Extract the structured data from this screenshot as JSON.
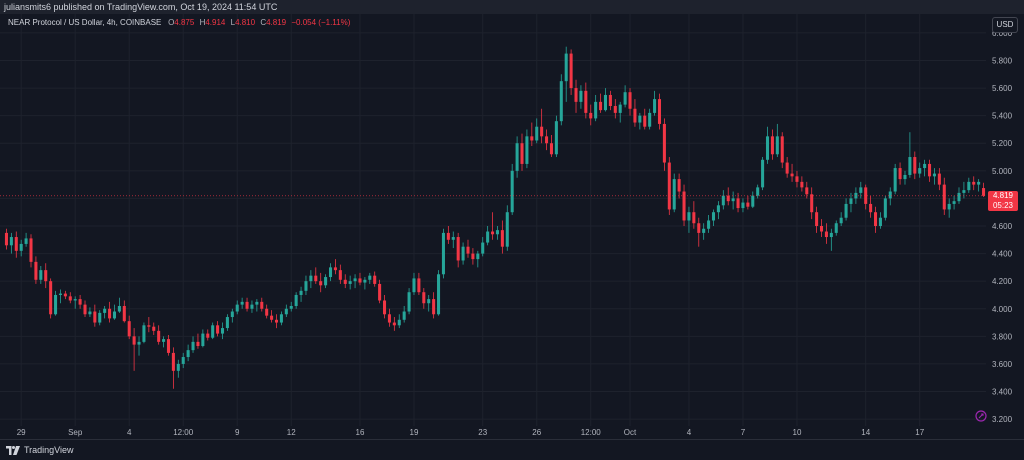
{
  "header": {
    "publisher_text": "juliansmits6 published on TradingView.com, Oct 19, 2024 11:54 UTC"
  },
  "legend": {
    "symbol": "NEAR Protocol / US Dollar, 4h, COINBASE",
    "open_key": "O",
    "open": "4.875",
    "high_key": "H",
    "high": "4.914",
    "low_key": "L",
    "low": "4.810",
    "close_key": "C",
    "close": "4.819",
    "change": "−0.054 (−1.11%)"
  },
  "toolbar": {
    "currency_label": "USD"
  },
  "price_tag": {
    "price": "4.819",
    "countdown": "05:23"
  },
  "footer": {
    "brand": "TradingView"
  },
  "colors": {
    "up": "#26a69a",
    "down": "#f23645",
    "background": "#131722",
    "grid": "#1e222d"
  },
  "chart_data": {
    "type": "candlestick",
    "title": "NEAR Protocol / US Dollar, 4h, COINBASE",
    "ylim": [
      3.15,
      6.05
    ],
    "y_ticks": [
      "6.000",
      "5.800",
      "5.600",
      "5.400",
      "5.200",
      "5.000",
      "4.800",
      "4.600",
      "4.400",
      "4.200",
      "4.000",
      "3.800",
      "3.600",
      "3.400",
      "3.200"
    ],
    "x_ticks": [
      "29",
      "Sep",
      "4",
      "12:00",
      "9",
      "12",
      "16",
      "19",
      "23",
      "26",
      "12:00",
      "Oct",
      "4",
      "7",
      "10",
      "14",
      "17"
    ],
    "x_tick_bars": [
      3,
      14,
      25,
      36,
      47,
      58,
      72,
      83,
      97,
      108,
      119,
      127,
      139,
      150,
      161,
      175,
      186
    ],
    "last_price": 4.819,
    "candles": [
      {
        "o": 4.55,
        "h": 4.58,
        "l": 4.43,
        "c": 4.46
      },
      {
        "o": 4.46,
        "h": 4.55,
        "l": 4.4,
        "c": 4.52
      },
      {
        "o": 4.52,
        "h": 4.56,
        "l": 4.37,
        "c": 4.42
      },
      {
        "o": 4.42,
        "h": 4.5,
        "l": 4.38,
        "c": 4.47
      },
      {
        "o": 4.47,
        "h": 4.55,
        "l": 4.45,
        "c": 4.51
      },
      {
        "o": 4.51,
        "h": 4.54,
        "l": 4.3,
        "c": 4.34
      },
      {
        "o": 4.34,
        "h": 4.38,
        "l": 4.18,
        "c": 4.21
      },
      {
        "o": 4.21,
        "h": 4.31,
        "l": 4.18,
        "c": 4.28
      },
      {
        "o": 4.28,
        "h": 4.33,
        "l": 4.15,
        "c": 4.2
      },
      {
        "o": 4.2,
        "h": 4.22,
        "l": 3.93,
        "c": 3.96
      },
      {
        "o": 3.96,
        "h": 4.13,
        "l": 3.95,
        "c": 4.1
      },
      {
        "o": 4.1,
        "h": 4.14,
        "l": 4.04,
        "c": 4.11
      },
      {
        "o": 4.11,
        "h": 4.13,
        "l": 4.07,
        "c": 4.09
      },
      {
        "o": 4.09,
        "h": 4.12,
        "l": 4.04,
        "c": 4.06
      },
      {
        "o": 4.06,
        "h": 4.09,
        "l": 4.0,
        "c": 4.07
      },
      {
        "o": 4.07,
        "h": 4.1,
        "l": 4.0,
        "c": 4.03
      },
      {
        "o": 4.03,
        "h": 4.06,
        "l": 3.94,
        "c": 3.96
      },
      {
        "o": 3.96,
        "h": 4.01,
        "l": 3.94,
        "c": 3.98
      },
      {
        "o": 3.98,
        "h": 4.03,
        "l": 3.87,
        "c": 3.9
      },
      {
        "o": 3.9,
        "h": 3.99,
        "l": 3.88,
        "c": 3.97
      },
      {
        "o": 3.97,
        "h": 4.02,
        "l": 3.93,
        "c": 4.0
      },
      {
        "o": 4.0,
        "h": 4.05,
        "l": 3.9,
        "c": 3.93
      },
      {
        "o": 3.93,
        "h": 4.03,
        "l": 3.92,
        "c": 3.98
      },
      {
        "o": 3.98,
        "h": 4.08,
        "l": 3.97,
        "c": 4.02
      },
      {
        "o": 4.02,
        "h": 4.06,
        "l": 3.9,
        "c": 3.91
      },
      {
        "o": 3.91,
        "h": 3.95,
        "l": 3.78,
        "c": 3.8
      },
      {
        "o": 3.8,
        "h": 3.86,
        "l": 3.55,
        "c": 3.74
      },
      {
        "o": 3.74,
        "h": 3.8,
        "l": 3.66,
        "c": 3.76
      },
      {
        "o": 3.76,
        "h": 3.9,
        "l": 3.75,
        "c": 3.88
      },
      {
        "o": 3.88,
        "h": 3.94,
        "l": 3.83,
        "c": 3.87
      },
      {
        "o": 3.87,
        "h": 3.9,
        "l": 3.81,
        "c": 3.84
      },
      {
        "o": 3.84,
        "h": 3.88,
        "l": 3.74,
        "c": 3.76
      },
      {
        "o": 3.76,
        "h": 3.8,
        "l": 3.72,
        "c": 3.78
      },
      {
        "o": 3.78,
        "h": 3.81,
        "l": 3.66,
        "c": 3.68
      },
      {
        "o": 3.68,
        "h": 3.72,
        "l": 3.42,
        "c": 3.55
      },
      {
        "o": 3.55,
        "h": 3.63,
        "l": 3.5,
        "c": 3.6
      },
      {
        "o": 3.6,
        "h": 3.68,
        "l": 3.57,
        "c": 3.65
      },
      {
        "o": 3.65,
        "h": 3.74,
        "l": 3.62,
        "c": 3.7
      },
      {
        "o": 3.7,
        "h": 3.8,
        "l": 3.68,
        "c": 3.76
      },
      {
        "o": 3.76,
        "h": 3.82,
        "l": 3.71,
        "c": 3.73
      },
      {
        "o": 3.73,
        "h": 3.85,
        "l": 3.72,
        "c": 3.82
      },
      {
        "o": 3.82,
        "h": 3.85,
        "l": 3.77,
        "c": 3.79
      },
      {
        "o": 3.79,
        "h": 3.9,
        "l": 3.78,
        "c": 3.88
      },
      {
        "o": 3.88,
        "h": 3.91,
        "l": 3.8,
        "c": 3.82
      },
      {
        "o": 3.82,
        "h": 3.9,
        "l": 3.78,
        "c": 3.86
      },
      {
        "o": 3.86,
        "h": 3.96,
        "l": 3.84,
        "c": 3.94
      },
      {
        "o": 3.94,
        "h": 4.0,
        "l": 3.9,
        "c": 3.98
      },
      {
        "o": 3.98,
        "h": 4.06,
        "l": 3.96,
        "c": 4.03
      },
      {
        "o": 4.03,
        "h": 4.08,
        "l": 4.0,
        "c": 4.05
      },
      {
        "o": 4.05,
        "h": 4.08,
        "l": 3.98,
        "c": 4.0
      },
      {
        "o": 4.0,
        "h": 4.06,
        "l": 3.97,
        "c": 4.03
      },
      {
        "o": 4.03,
        "h": 4.07,
        "l": 3.98,
        "c": 4.05
      },
      {
        "o": 4.05,
        "h": 4.08,
        "l": 3.98,
        "c": 4.0
      },
      {
        "o": 4.0,
        "h": 4.03,
        "l": 3.93,
        "c": 3.95
      },
      {
        "o": 3.95,
        "h": 3.99,
        "l": 3.9,
        "c": 3.92
      },
      {
        "o": 3.92,
        "h": 3.96,
        "l": 3.86,
        "c": 3.9
      },
      {
        "o": 3.9,
        "h": 3.98,
        "l": 3.88,
        "c": 3.96
      },
      {
        "o": 3.96,
        "h": 4.03,
        "l": 3.94,
        "c": 4.0
      },
      {
        "o": 4.0,
        "h": 4.05,
        "l": 3.98,
        "c": 4.02
      },
      {
        "o": 4.02,
        "h": 4.12,
        "l": 4.0,
        "c": 4.1
      },
      {
        "o": 4.1,
        "h": 4.16,
        "l": 4.05,
        "c": 4.13
      },
      {
        "o": 4.13,
        "h": 4.24,
        "l": 4.1,
        "c": 4.2
      },
      {
        "o": 4.2,
        "h": 4.28,
        "l": 4.15,
        "c": 4.24
      },
      {
        "o": 4.24,
        "h": 4.3,
        "l": 4.18,
        "c": 4.2
      },
      {
        "o": 4.2,
        "h": 4.26,
        "l": 4.12,
        "c": 4.17
      },
      {
        "o": 4.17,
        "h": 4.25,
        "l": 4.15,
        "c": 4.23
      },
      {
        "o": 4.23,
        "h": 4.33,
        "l": 4.2,
        "c": 4.3
      },
      {
        "o": 4.3,
        "h": 4.36,
        "l": 4.25,
        "c": 4.28
      },
      {
        "o": 4.28,
        "h": 4.32,
        "l": 4.18,
        "c": 4.21
      },
      {
        "o": 4.21,
        "h": 4.25,
        "l": 4.15,
        "c": 4.18
      },
      {
        "o": 4.18,
        "h": 4.24,
        "l": 4.14,
        "c": 4.2
      },
      {
        "o": 4.2,
        "h": 4.25,
        "l": 4.15,
        "c": 4.22
      },
      {
        "o": 4.22,
        "h": 4.26,
        "l": 4.17,
        "c": 4.19
      },
      {
        "o": 4.19,
        "h": 4.23,
        "l": 4.14,
        "c": 4.21
      },
      {
        "o": 4.21,
        "h": 4.26,
        "l": 4.18,
        "c": 4.24
      },
      {
        "o": 4.24,
        "h": 4.27,
        "l": 4.16,
        "c": 4.18
      },
      {
        "o": 4.18,
        "h": 4.21,
        "l": 4.04,
        "c": 4.06
      },
      {
        "o": 4.06,
        "h": 4.1,
        "l": 3.93,
        "c": 3.96
      },
      {
        "o": 3.96,
        "h": 4.0,
        "l": 3.87,
        "c": 3.9
      },
      {
        "o": 3.9,
        "h": 3.94,
        "l": 3.84,
        "c": 3.88
      },
      {
        "o": 3.88,
        "h": 3.96,
        "l": 3.86,
        "c": 3.92
      },
      {
        "o": 3.92,
        "h": 4.02,
        "l": 3.9,
        "c": 3.98
      },
      {
        "o": 3.98,
        "h": 4.15,
        "l": 3.96,
        "c": 4.12
      },
      {
        "o": 4.12,
        "h": 4.26,
        "l": 4.1,
        "c": 4.22
      },
      {
        "o": 4.22,
        "h": 4.26,
        "l": 4.1,
        "c": 4.12
      },
      {
        "o": 4.12,
        "h": 4.15,
        "l": 4.0,
        "c": 4.04
      },
      {
        "o": 4.04,
        "h": 4.1,
        "l": 3.98,
        "c": 4.07
      },
      {
        "o": 4.07,
        "h": 4.12,
        "l": 3.93,
        "c": 3.96
      },
      {
        "o": 3.96,
        "h": 4.28,
        "l": 3.95,
        "c": 4.25
      },
      {
        "o": 4.25,
        "h": 4.58,
        "l": 4.22,
        "c": 4.55
      },
      {
        "o": 4.55,
        "h": 4.6,
        "l": 4.47,
        "c": 4.5
      },
      {
        "o": 4.5,
        "h": 4.56,
        "l": 4.44,
        "c": 4.52
      },
      {
        "o": 4.52,
        "h": 4.55,
        "l": 4.3,
        "c": 4.35
      },
      {
        "o": 4.35,
        "h": 4.48,
        "l": 4.32,
        "c": 4.45
      },
      {
        "o": 4.45,
        "h": 4.5,
        "l": 4.37,
        "c": 4.4
      },
      {
        "o": 4.4,
        "h": 4.44,
        "l": 4.32,
        "c": 4.36
      },
      {
        "o": 4.36,
        "h": 4.42,
        "l": 4.3,
        "c": 4.4
      },
      {
        "o": 4.4,
        "h": 4.52,
        "l": 4.38,
        "c": 4.48
      },
      {
        "o": 4.48,
        "h": 4.6,
        "l": 4.46,
        "c": 4.56
      },
      {
        "o": 4.56,
        "h": 4.7,
        "l": 4.5,
        "c": 4.54
      },
      {
        "o": 4.54,
        "h": 4.6,
        "l": 4.5,
        "c": 4.57
      },
      {
        "o": 4.57,
        "h": 4.64,
        "l": 4.4,
        "c": 4.45
      },
      {
        "o": 4.45,
        "h": 4.75,
        "l": 4.42,
        "c": 4.7
      },
      {
        "o": 4.7,
        "h": 5.05,
        "l": 4.68,
        "c": 5.0
      },
      {
        "o": 5.0,
        "h": 5.25,
        "l": 4.95,
        "c": 5.2
      },
      {
        "o": 5.2,
        "h": 5.27,
        "l": 5.0,
        "c": 5.05
      },
      {
        "o": 5.05,
        "h": 5.3,
        "l": 5.02,
        "c": 5.25
      },
      {
        "o": 5.25,
        "h": 5.35,
        "l": 5.18,
        "c": 5.22
      },
      {
        "o": 5.22,
        "h": 5.38,
        "l": 5.2,
        "c": 5.32
      },
      {
        "o": 5.32,
        "h": 5.45,
        "l": 5.2,
        "c": 5.25
      },
      {
        "o": 5.25,
        "h": 5.3,
        "l": 5.15,
        "c": 5.2
      },
      {
        "o": 5.2,
        "h": 5.26,
        "l": 5.1,
        "c": 5.12
      },
      {
        "o": 5.12,
        "h": 5.4,
        "l": 5.1,
        "c": 5.36
      },
      {
        "o": 5.36,
        "h": 5.7,
        "l": 5.33,
        "c": 5.65
      },
      {
        "o": 5.65,
        "h": 5.9,
        "l": 5.5,
        "c": 5.85
      },
      {
        "o": 5.85,
        "h": 5.88,
        "l": 5.55,
        "c": 5.6
      },
      {
        "o": 5.6,
        "h": 5.66,
        "l": 5.42,
        "c": 5.5
      },
      {
        "o": 5.5,
        "h": 5.62,
        "l": 5.45,
        "c": 5.58
      },
      {
        "o": 5.58,
        "h": 5.64,
        "l": 5.38,
        "c": 5.42
      },
      {
        "o": 5.42,
        "h": 5.48,
        "l": 5.33,
        "c": 5.38
      },
      {
        "o": 5.38,
        "h": 5.55,
        "l": 5.36,
        "c": 5.5
      },
      {
        "o": 5.5,
        "h": 5.56,
        "l": 5.42,
        "c": 5.44
      },
      {
        "o": 5.44,
        "h": 5.6,
        "l": 5.43,
        "c": 5.55
      },
      {
        "o": 5.55,
        "h": 5.58,
        "l": 5.44,
        "c": 5.47
      },
      {
        "o": 5.47,
        "h": 5.52,
        "l": 5.38,
        "c": 5.42
      },
      {
        "o": 5.42,
        "h": 5.5,
        "l": 5.35,
        "c": 5.48
      },
      {
        "o": 5.48,
        "h": 5.62,
        "l": 5.46,
        "c": 5.57
      },
      {
        "o": 5.57,
        "h": 5.6,
        "l": 5.4,
        "c": 5.45
      },
      {
        "o": 5.45,
        "h": 5.52,
        "l": 5.32,
        "c": 5.35
      },
      {
        "o": 5.35,
        "h": 5.42,
        "l": 5.3,
        "c": 5.4
      },
      {
        "o": 5.4,
        "h": 5.45,
        "l": 5.3,
        "c": 5.32
      },
      {
        "o": 5.32,
        "h": 5.45,
        "l": 5.3,
        "c": 5.42
      },
      {
        "o": 5.42,
        "h": 5.58,
        "l": 5.4,
        "c": 5.52
      },
      {
        "o": 5.52,
        "h": 5.56,
        "l": 5.3,
        "c": 5.34
      },
      {
        "o": 5.34,
        "h": 5.38,
        "l": 5.0,
        "c": 5.06
      },
      {
        "o": 5.06,
        "h": 5.1,
        "l": 4.68,
        "c": 4.72
      },
      {
        "o": 4.72,
        "h": 4.98,
        "l": 4.7,
        "c": 4.94
      },
      {
        "o": 4.94,
        "h": 4.98,
        "l": 4.8,
        "c": 4.85
      },
      {
        "o": 4.85,
        "h": 4.9,
        "l": 4.6,
        "c": 4.64
      },
      {
        "o": 4.64,
        "h": 4.74,
        "l": 4.55,
        "c": 4.7
      },
      {
        "o": 4.7,
        "h": 4.78,
        "l": 4.58,
        "c": 4.62
      },
      {
        "o": 4.62,
        "h": 4.66,
        "l": 4.45,
        "c": 4.55
      },
      {
        "o": 4.55,
        "h": 4.62,
        "l": 4.5,
        "c": 4.58
      },
      {
        "o": 4.58,
        "h": 4.68,
        "l": 4.55,
        "c": 4.64
      },
      {
        "o": 4.64,
        "h": 4.72,
        "l": 4.6,
        "c": 4.7
      },
      {
        "o": 4.7,
        "h": 4.78,
        "l": 4.65,
        "c": 4.75
      },
      {
        "o": 4.75,
        "h": 4.86,
        "l": 4.72,
        "c": 4.82
      },
      {
        "o": 4.82,
        "h": 4.88,
        "l": 4.75,
        "c": 4.78
      },
      {
        "o": 4.78,
        "h": 4.85,
        "l": 4.72,
        "c": 4.8
      },
      {
        "o": 4.8,
        "h": 4.84,
        "l": 4.7,
        "c": 4.73
      },
      {
        "o": 4.73,
        "h": 4.8,
        "l": 4.7,
        "c": 4.77
      },
      {
        "o": 4.77,
        "h": 4.82,
        "l": 4.72,
        "c": 4.74
      },
      {
        "o": 4.74,
        "h": 4.85,
        "l": 4.73,
        "c": 4.82
      },
      {
        "o": 4.82,
        "h": 4.9,
        "l": 4.8,
        "c": 4.88
      },
      {
        "o": 4.88,
        "h": 5.1,
        "l": 4.86,
        "c": 5.08
      },
      {
        "o": 5.08,
        "h": 5.32,
        "l": 5.05,
        "c": 5.25
      },
      {
        "o": 5.25,
        "h": 5.3,
        "l": 5.08,
        "c": 5.12
      },
      {
        "o": 5.12,
        "h": 5.34,
        "l": 5.1,
        "c": 5.25
      },
      {
        "o": 5.25,
        "h": 5.28,
        "l": 5.02,
        "c": 5.06
      },
      {
        "o": 5.06,
        "h": 5.1,
        "l": 4.95,
        "c": 4.98
      },
      {
        "o": 4.98,
        "h": 5.05,
        "l": 4.92,
        "c": 4.96
      },
      {
        "o": 4.96,
        "h": 5.0,
        "l": 4.88,
        "c": 4.92
      },
      {
        "o": 4.92,
        "h": 4.96,
        "l": 4.85,
        "c": 4.88
      },
      {
        "o": 4.88,
        "h": 4.92,
        "l": 4.8,
        "c": 4.83
      },
      {
        "o": 4.83,
        "h": 4.88,
        "l": 4.65,
        "c": 4.7
      },
      {
        "o": 4.7,
        "h": 4.74,
        "l": 4.55,
        "c": 4.6
      },
      {
        "o": 4.6,
        "h": 4.65,
        "l": 4.52,
        "c": 4.56
      },
      {
        "o": 4.56,
        "h": 4.62,
        "l": 4.47,
        "c": 4.52
      },
      {
        "o": 4.52,
        "h": 4.58,
        "l": 4.42,
        "c": 4.55
      },
      {
        "o": 4.55,
        "h": 4.64,
        "l": 4.53,
        "c": 4.62
      },
      {
        "o": 4.62,
        "h": 4.7,
        "l": 4.6,
        "c": 4.66
      },
      {
        "o": 4.66,
        "h": 4.8,
        "l": 4.64,
        "c": 4.76
      },
      {
        "o": 4.76,
        "h": 4.84,
        "l": 4.7,
        "c": 4.8
      },
      {
        "o": 4.8,
        "h": 4.88,
        "l": 4.76,
        "c": 4.84
      },
      {
        "o": 4.84,
        "h": 4.92,
        "l": 4.8,
        "c": 4.88
      },
      {
        "o": 4.88,
        "h": 4.9,
        "l": 4.72,
        "c": 4.76
      },
      {
        "o": 4.76,
        "h": 4.82,
        "l": 4.66,
        "c": 4.7
      },
      {
        "o": 4.7,
        "h": 4.74,
        "l": 4.55,
        "c": 4.6
      },
      {
        "o": 4.6,
        "h": 4.7,
        "l": 4.58,
        "c": 4.66
      },
      {
        "o": 4.66,
        "h": 4.82,
        "l": 4.64,
        "c": 4.8
      },
      {
        "o": 4.8,
        "h": 4.88,
        "l": 4.75,
        "c": 4.85
      },
      {
        "o": 4.85,
        "h": 5.05,
        "l": 4.83,
        "c": 5.02
      },
      {
        "o": 5.02,
        "h": 5.06,
        "l": 4.9,
        "c": 4.94
      },
      {
        "o": 4.94,
        "h": 5.0,
        "l": 4.9,
        "c": 4.97
      },
      {
        "o": 4.97,
        "h": 5.28,
        "l": 4.95,
        "c": 5.1
      },
      {
        "o": 5.1,
        "h": 5.14,
        "l": 4.94,
        "c": 4.98
      },
      {
        "o": 4.98,
        "h": 5.06,
        "l": 4.95,
        "c": 5.02
      },
      {
        "o": 5.02,
        "h": 5.08,
        "l": 4.96,
        "c": 5.05
      },
      {
        "o": 5.05,
        "h": 5.08,
        "l": 4.92,
        "c": 4.96
      },
      {
        "o": 4.96,
        "h": 5.02,
        "l": 4.9,
        "c": 4.98
      },
      {
        "o": 4.98,
        "h": 5.02,
        "l": 4.86,
        "c": 4.9
      },
      {
        "o": 4.9,
        "h": 4.95,
        "l": 4.68,
        "c": 4.72
      },
      {
        "o": 4.72,
        "h": 4.8,
        "l": 4.66,
        "c": 4.76
      },
      {
        "o": 4.76,
        "h": 4.82,
        "l": 4.72,
        "c": 4.78
      },
      {
        "o": 4.78,
        "h": 4.88,
        "l": 4.76,
        "c": 4.84
      },
      {
        "o": 4.84,
        "h": 4.92,
        "l": 4.8,
        "c": 4.86
      },
      {
        "o": 4.86,
        "h": 4.95,
        "l": 4.84,
        "c": 4.92
      },
      {
        "o": 4.92,
        "h": 4.96,
        "l": 4.86,
        "c": 4.9
      },
      {
        "o": 4.9,
        "h": 4.94,
        "l": 4.85,
        "c": 4.92
      },
      {
        "o": 4.875,
        "h": 4.914,
        "l": 4.81,
        "c": 4.819
      }
    ]
  }
}
